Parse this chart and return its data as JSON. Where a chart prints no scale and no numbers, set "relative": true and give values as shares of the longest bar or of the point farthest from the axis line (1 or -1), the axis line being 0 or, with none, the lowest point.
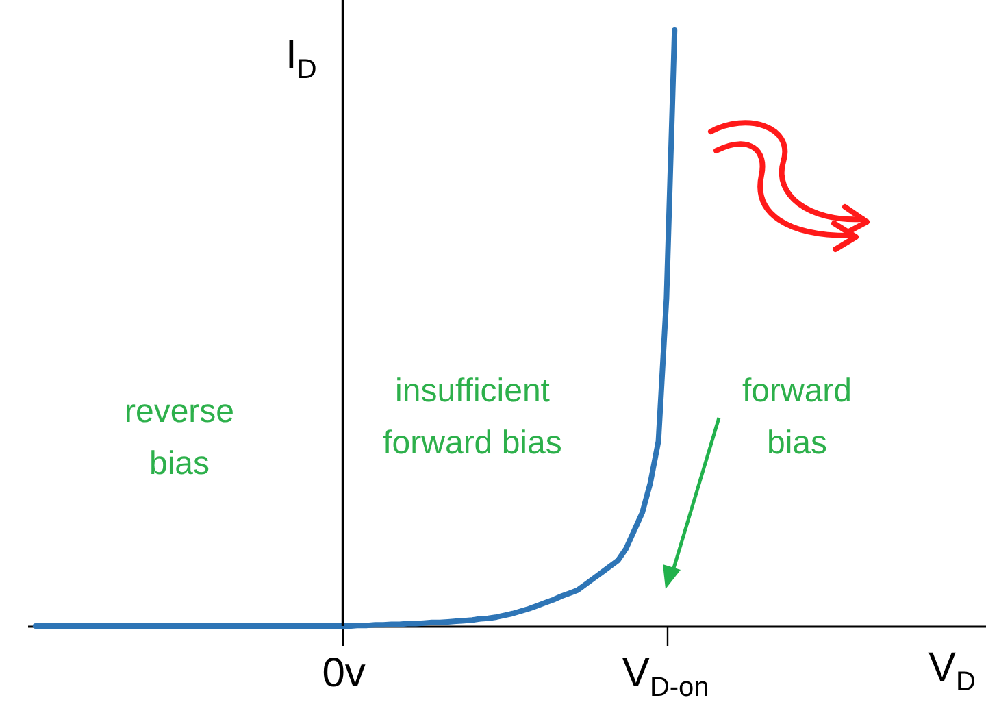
{
  "chart_data": {
    "type": "line",
    "relative": true,
    "xlabel": "V$_{D}$",
    "ylabel": "I$_{D}$",
    "categories": [
      null,
      null,
      null,
      null,
      null,
      null,
      null,
      null,
      null,
      null,
      null,
      null,
      null,
      null,
      null,
      null,
      null,
      null,
      null,
      null,
      null,
      null,
      null,
      null,
      null,
      null,
      null,
      null,
      null,
      null,
      null,
      null,
      null,
      null,
      null,
      null,
      null,
      null,
      "0v",
      null,
      null,
      null,
      null,
      null,
      null,
      null,
      null,
      null,
      null,
      null,
      null,
      null,
      null,
      null,
      null,
      null,
      null,
      null,
      null,
      null,
      null,
      null,
      null,
      null,
      null,
      null,
      null,
      null,
      null,
      null,
      null,
      null,
      null,
      null,
      null,
      null,
      null,
      null,
      "V$_{D-on}$",
      null,
      null,
      null,
      null,
      null,
      null,
      null,
      null,
      null,
      null,
      null,
      null,
      null,
      null,
      null,
      null,
      null,
      null,
      null,
      null,
      null,
      null,
      null,
      null,
      null,
      null,
      null,
      null,
      null,
      null,
      null,
      null,
      null,
      null,
      null,
      null,
      null,
      null,
      null
    ],
    "series": [
      {
        "color": "#2e75b6",
        "values": [
          0,
          0,
          0,
          0,
          0,
          0,
          0,
          0,
          0,
          0,
          0,
          0,
          0,
          0,
          0,
          0,
          0,
          0,
          0,
          0,
          0,
          0,
          0,
          0,
          0,
          0,
          0,
          0,
          0,
          0,
          0,
          0,
          0,
          0,
          0,
          0,
          0,
          0,
          0,
          0,
          0.001,
          0.001,
          0.002,
          0.002,
          0.003,
          0.003,
          0.004,
          0.004,
          0.005,
          0.006,
          0.006,
          0.007,
          0.008,
          0.009,
          0.01,
          0.012,
          0.013,
          0.015,
          0.018,
          0.021,
          0.025,
          0.029,
          0.034,
          0.039,
          0.044,
          0.05,
          0.055,
          0.06,
          0.07,
          0.08,
          0.09,
          0.1,
          0.11,
          0.13,
          0.16,
          0.19,
          0.24,
          0.31,
          0.55,
          1,
          null,
          null,
          null,
          null,
          null,
          null,
          null,
          null,
          null,
          null,
          null,
          null,
          null,
          null,
          null,
          null,
          null,
          null,
          null,
          null,
          null,
          null,
          null,
          null,
          null,
          null,
          null,
          null,
          null,
          null,
          null,
          null,
          null,
          null,
          null,
          null,
          null,
          null
        ]
      }
    ],
    "ref_lines": [
      {
        "axis": "x",
        "value": "0v",
        "color": "#000000"
      }
    ],
    "annotations": [
      "reverse bias",
      "insufficient forward bias",
      "forward bias"
    ]
  }
}
